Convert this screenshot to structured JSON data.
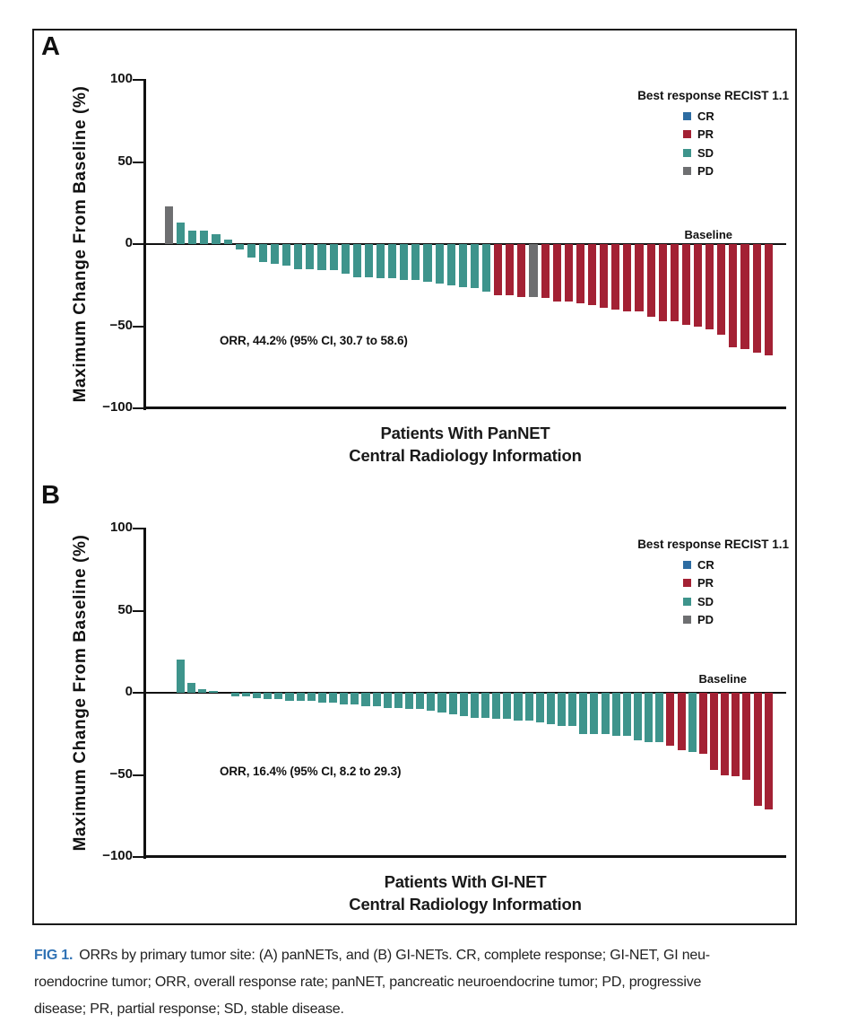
{
  "colors": {
    "CR": "#2d6ca2",
    "PR": "#a32134",
    "SD": "#3e948c",
    "PD": "#6e6f71",
    "axis": "#111111",
    "caption_tag_blue": "#3173b5"
  },
  "legend": {
    "title": "Best response RECIST 1.1",
    "items": [
      {
        "label": "CR",
        "color_key": "CR"
      },
      {
        "label": "PR",
        "color_key": "PR"
      },
      {
        "label": "SD",
        "color_key": "SD"
      },
      {
        "label": "PD",
        "color_key": "PD"
      }
    ]
  },
  "chart_data": [
    {
      "type": "bar",
      "panel": "A",
      "ylabel": "Maximum Change From Baseline (%)",
      "xlabel_line1": "Patients With PanNET",
      "xlabel_line2": "Central Radiology Information",
      "ylim": [
        -100,
        100
      ],
      "yticks": [
        100,
        50,
        0,
        -50,
        -100
      ],
      "grid": "off",
      "legend_position": "top-right",
      "baseline_label": "Baseline",
      "annotation": "ORR, 44.2% (95% CI, 30.7 to 58.6)",
      "bars": [
        {
          "value": 23,
          "response": "PD"
        },
        {
          "value": 13,
          "response": "SD"
        },
        {
          "value": 8,
          "response": "SD"
        },
        {
          "value": 8,
          "response": "SD"
        },
        {
          "value": 6,
          "response": "SD"
        },
        {
          "value": 3,
          "response": "SD"
        },
        {
          "value": -3,
          "response": "SD"
        },
        {
          "value": -8,
          "response": "SD"
        },
        {
          "value": -11,
          "response": "SD"
        },
        {
          "value": -12,
          "response": "SD"
        },
        {
          "value": -13,
          "response": "SD"
        },
        {
          "value": -15,
          "response": "SD"
        },
        {
          "value": -15,
          "response": "SD"
        },
        {
          "value": -16,
          "response": "SD"
        },
        {
          "value": -16,
          "response": "SD"
        },
        {
          "value": -18,
          "response": "SD"
        },
        {
          "value": -20,
          "response": "SD"
        },
        {
          "value": -20,
          "response": "SD"
        },
        {
          "value": -21,
          "response": "SD"
        },
        {
          "value": -21,
          "response": "SD"
        },
        {
          "value": -22,
          "response": "SD"
        },
        {
          "value": -22,
          "response": "SD"
        },
        {
          "value": -23,
          "response": "SD"
        },
        {
          "value": -24,
          "response": "SD"
        },
        {
          "value": -25,
          "response": "SD"
        },
        {
          "value": -26,
          "response": "SD"
        },
        {
          "value": -27,
          "response": "SD"
        },
        {
          "value": -29,
          "response": "SD"
        },
        {
          "value": -31,
          "response": "PR"
        },
        {
          "value": -31,
          "response": "PR"
        },
        {
          "value": -32,
          "response": "PR"
        },
        {
          "value": -32,
          "response": "PD"
        },
        {
          "value": -33,
          "response": "PR"
        },
        {
          "value": -35,
          "response": "PR"
        },
        {
          "value": -35,
          "response": "PR"
        },
        {
          "value": -36,
          "response": "PR"
        },
        {
          "value": -37,
          "response": "PR"
        },
        {
          "value": -39,
          "response": "PR"
        },
        {
          "value": -40,
          "response": "PR"
        },
        {
          "value": -41,
          "response": "PR"
        },
        {
          "value": -41,
          "response": "PR"
        },
        {
          "value": -44,
          "response": "PR"
        },
        {
          "value": -47,
          "response": "PR"
        },
        {
          "value": -47,
          "response": "PR"
        },
        {
          "value": -49,
          "response": "PR"
        },
        {
          "value": -50,
          "response": "PR"
        },
        {
          "value": -52,
          "response": "PR"
        },
        {
          "value": -55,
          "response": "PR"
        },
        {
          "value": -63,
          "response": "PR"
        },
        {
          "value": -64,
          "response": "PR"
        },
        {
          "value": -66,
          "response": "PR"
        },
        {
          "value": -68,
          "response": "PR"
        }
      ]
    },
    {
      "type": "bar",
      "panel": "B",
      "ylabel": "Maximum Change From Baseline (%)",
      "xlabel_line1": "Patients With GI-NET",
      "xlabel_line2": "Central Radiology Information",
      "ylim": [
        -100,
        100
      ],
      "yticks": [
        100,
        50,
        0,
        -50,
        -100
      ],
      "grid": "off",
      "legend_position": "top-right",
      "baseline_label": "Baseline",
      "annotation": "ORR, 16.4% (95% CI, 8.2 to 29.3)",
      "bars": [
        {
          "value": 20,
          "response": "SD"
        },
        {
          "value": 6,
          "response": "SD"
        },
        {
          "value": 2,
          "response": "SD"
        },
        {
          "value": 1,
          "response": "SD"
        },
        {
          "value": 0,
          "response": "SD"
        },
        {
          "value": -2,
          "response": "SD"
        },
        {
          "value": -2,
          "response": "SD"
        },
        {
          "value": -3,
          "response": "SD"
        },
        {
          "value": -4,
          "response": "SD"
        },
        {
          "value": -4,
          "response": "SD"
        },
        {
          "value": -5,
          "response": "SD"
        },
        {
          "value": -5,
          "response": "SD"
        },
        {
          "value": -5,
          "response": "SD"
        },
        {
          "value": -6,
          "response": "SD"
        },
        {
          "value": -6,
          "response": "SD"
        },
        {
          "value": -7,
          "response": "SD"
        },
        {
          "value": -7,
          "response": "SD"
        },
        {
          "value": -8,
          "response": "SD"
        },
        {
          "value": -8,
          "response": "SD"
        },
        {
          "value": -9,
          "response": "SD"
        },
        {
          "value": -9,
          "response": "SD"
        },
        {
          "value": -10,
          "response": "SD"
        },
        {
          "value": -10,
          "response": "SD"
        },
        {
          "value": -11,
          "response": "SD"
        },
        {
          "value": -12,
          "response": "SD"
        },
        {
          "value": -13,
          "response": "SD"
        },
        {
          "value": -14,
          "response": "SD"
        },
        {
          "value": -15,
          "response": "SD"
        },
        {
          "value": -15,
          "response": "SD"
        },
        {
          "value": -16,
          "response": "SD"
        },
        {
          "value": -16,
          "response": "SD"
        },
        {
          "value": -17,
          "response": "SD"
        },
        {
          "value": -17,
          "response": "SD"
        },
        {
          "value": -18,
          "response": "SD"
        },
        {
          "value": -19,
          "response": "SD"
        },
        {
          "value": -20,
          "response": "SD"
        },
        {
          "value": -20,
          "response": "SD"
        },
        {
          "value": -25,
          "response": "SD"
        },
        {
          "value": -25,
          "response": "SD"
        },
        {
          "value": -25,
          "response": "SD"
        },
        {
          "value": -26,
          "response": "SD"
        },
        {
          "value": -26,
          "response": "SD"
        },
        {
          "value": -29,
          "response": "SD"
        },
        {
          "value": -30,
          "response": "SD"
        },
        {
          "value": -30,
          "response": "SD"
        },
        {
          "value": -32,
          "response": "PR"
        },
        {
          "value": -35,
          "response": "PR"
        },
        {
          "value": -36,
          "response": "SD"
        },
        {
          "value": -37,
          "response": "PR"
        },
        {
          "value": -47,
          "response": "PR"
        },
        {
          "value": -50,
          "response": "PR"
        },
        {
          "value": -51,
          "response": "PR"
        },
        {
          "value": -53,
          "response": "PR"
        },
        {
          "value": -69,
          "response": "PR"
        },
        {
          "value": -71,
          "response": "PR"
        }
      ]
    }
  ],
  "caption": {
    "tag": "FIG 1.",
    "line1_rest": "ORRs by primary tumor site: (A) panNETs, and (B) GI-NETs. CR, complete response; GI-NET, GI neu-",
    "line2": "roendocrine tumor; ORR, overall response rate; panNET, pancreatic neuroendocrine tumor; PD, progressive",
    "line3": "disease; PR, partial response; SD, stable disease."
  }
}
